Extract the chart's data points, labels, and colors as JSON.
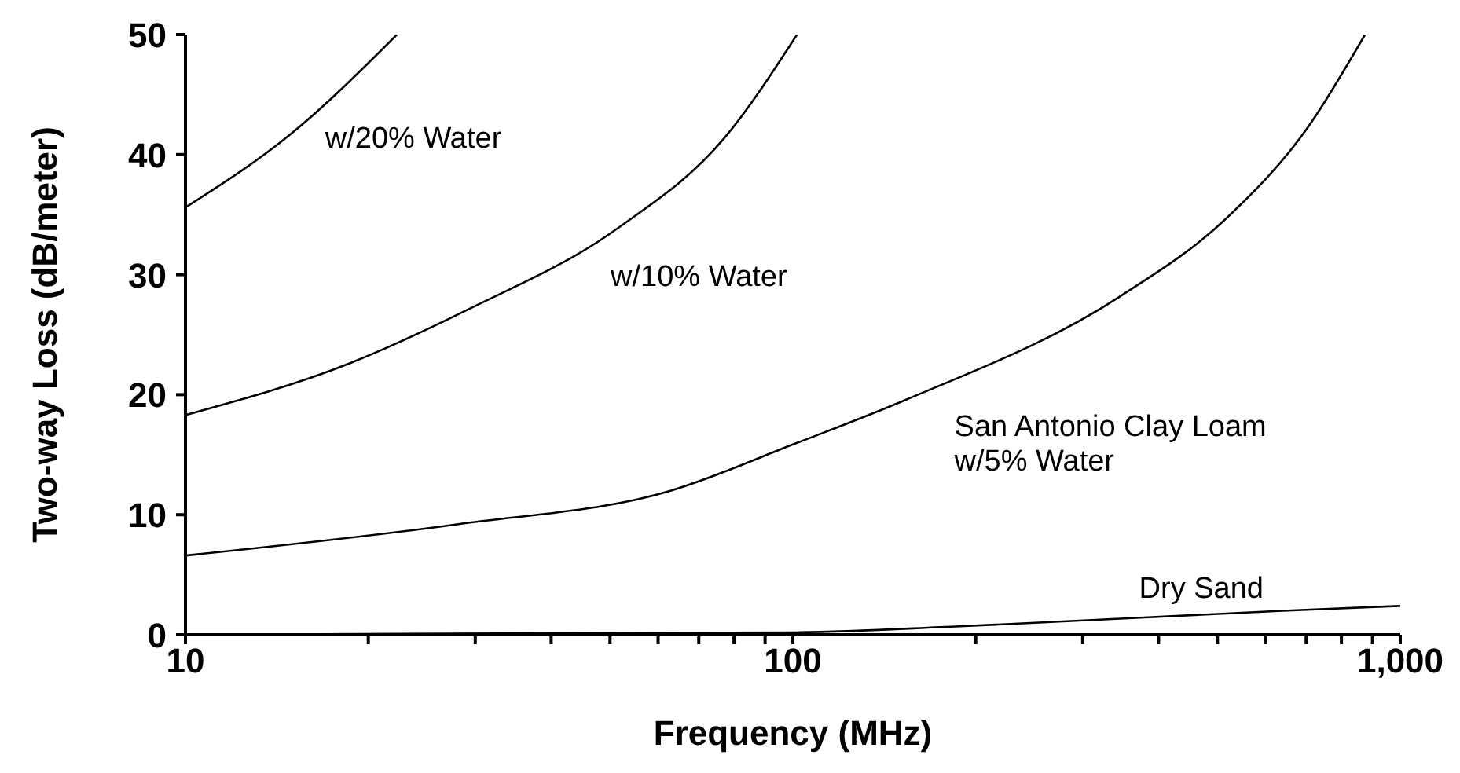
{
  "chart_data": {
    "type": "line",
    "xlabel": "Frequency (MHz)",
    "ylabel": "Two-way Loss (dB/meter)",
    "log": "x",
    "xlim": [
      10,
      1000
    ],
    "ylim": [
      0,
      50
    ],
    "xticks": [
      10,
      {
        "value": 20,
        "label": null
      },
      {
        "value": 30,
        "label": null
      },
      {
        "value": 40,
        "label": null
      },
      {
        "value": 50,
        "label": null
      },
      {
        "value": 60,
        "label": null
      },
      {
        "value": 70,
        "label": null
      },
      {
        "value": 80,
        "label": null
      },
      {
        "value": 90,
        "label": null
      },
      100,
      {
        "value": 200,
        "label": null
      },
      {
        "value": 300,
        "label": null
      },
      {
        "value": 400,
        "label": null
      },
      {
        "value": 500,
        "label": null
      },
      {
        "value": 600,
        "label": null
      },
      {
        "value": 700,
        "label": null
      },
      {
        "value": 800,
        "label": null
      },
      {
        "value": 900,
        "label": null
      },
      {
        "value": 1000,
        "label": "1,000"
      }
    ],
    "yticks": [
      0,
      10,
      20,
      30,
      40,
      50
    ],
    "grid": false,
    "legend": false,
    "marker": "none",
    "line_style": "solid",
    "series": [
      {
        "name": "w/20% Water",
        "color": "#000000",
        "x": [
          10,
          14.9,
          22.3
        ],
        "values": [
          35.6,
          41.7,
          50
        ]
      },
      {
        "name": "w/10% Water",
        "color": "#000000",
        "x": [
          10,
          18.6,
          29.2,
          51.6,
          77.2,
          101.6
        ],
        "values": [
          18.3,
          22.6,
          27.1,
          33.9,
          41.4,
          50
        ]
      },
      {
        "name": "San Antonio Clay Loam w/5% Water",
        "color": "#000000",
        "x": [
          10,
          28,
          62.9,
          100.6,
          153.9,
          346,
          520,
          705,
          875
        ],
        "values": [
          6.6,
          9.2,
          12.0,
          15.9,
          19.6,
          28.2,
          34.8,
          42.3,
          50
        ]
      },
      {
        "name": "Dry Sand",
        "color": "#000000",
        "x": [
          10,
          100,
          188,
          640,
          1000
        ],
        "values": [
          0,
          0.2,
          0.7,
          2.0,
          2.4
        ]
      }
    ]
  }
}
